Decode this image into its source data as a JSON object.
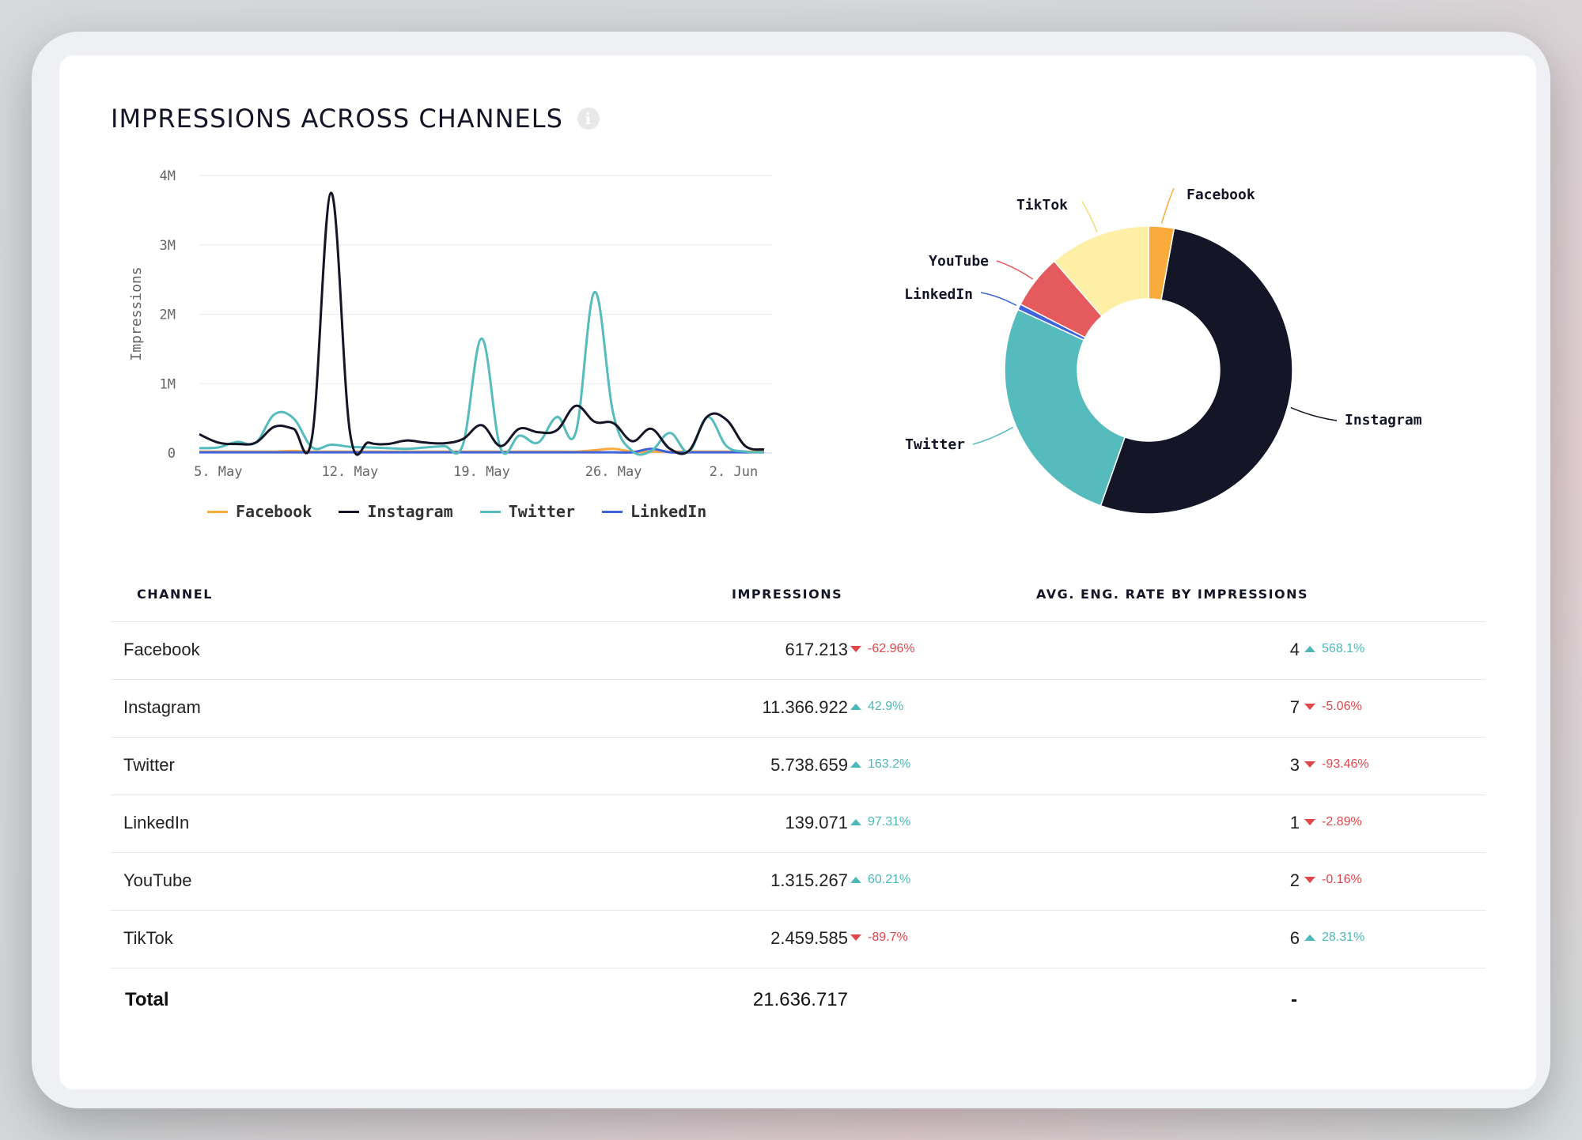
{
  "header": {
    "title": "IMPRESSIONS ACROSS CHANNELS",
    "info_icon": "info-icon"
  },
  "chart_data": [
    {
      "type": "line",
      "title": "",
      "xlabel": "",
      "ylabel": "Impressions",
      "ylim": [
        0,
        4000000
      ],
      "yticks": [
        "0",
        "1M",
        "2M",
        "3M",
        "4M"
      ],
      "xticks": [
        "5. May",
        "12. May",
        "19. May",
        "26. May",
        "2. Jun"
      ],
      "x_dates": [
        "4. May",
        "5. May",
        "6. May",
        "7. May",
        "8. May",
        "9. May",
        "10. May",
        "11. May",
        "12. May",
        "13. May",
        "14. May",
        "15. May",
        "16. May",
        "17. May",
        "18. May",
        "19. May",
        "20. May",
        "21. May",
        "22. May",
        "23. May",
        "24. May",
        "25. May",
        "26. May",
        "27. May",
        "28. May",
        "29. May",
        "30. May",
        "31. May",
        "1. Jun",
        "2. Jun",
        "3. Jun"
      ],
      "grid": true,
      "legend": "bottom",
      "series": [
        {
          "name": "Facebook",
          "color": "#f9ab3b",
          "values": [
            20000,
            20000,
            20000,
            20000,
            20000,
            30000,
            20000,
            20000,
            20000,
            20000,
            20000,
            20000,
            20000,
            20000,
            20000,
            20000,
            20000,
            20000,
            20000,
            20000,
            20000,
            40000,
            60000,
            20000,
            20000,
            20000,
            20000,
            20000,
            20000,
            20000,
            20000
          ]
        },
        {
          "name": "Instagram",
          "color": "#151528",
          "values": [
            270000,
            150000,
            130000,
            150000,
            380000,
            350000,
            250000,
            3750000,
            300000,
            150000,
            130000,
            180000,
            150000,
            140000,
            200000,
            400000,
            100000,
            350000,
            300000,
            330000,
            680000,
            450000,
            430000,
            170000,
            350000,
            60000,
            30000,
            530000,
            480000,
            100000,
            50000
          ]
        },
        {
          "name": "Twitter",
          "color": "#56bbbc",
          "values": [
            70000,
            80000,
            160000,
            150000,
            560000,
            500000,
            80000,
            120000,
            90000,
            80000,
            70000,
            60000,
            80000,
            100000,
            120000,
            1650000,
            70000,
            250000,
            150000,
            520000,
            300000,
            2320000,
            550000,
            30000,
            30000,
            290000,
            20000,
            520000,
            100000,
            20000,
            10000
          ]
        },
        {
          "name": "LinkedIn",
          "color": "#3f63db",
          "values": [
            10000,
            10000,
            10000,
            10000,
            10000,
            10000,
            10000,
            10000,
            10000,
            10000,
            10000,
            10000,
            10000,
            10000,
            10000,
            10000,
            10000,
            10000,
            10000,
            10000,
            10000,
            10000,
            10000,
            10000,
            60000,
            10000,
            10000,
            10000,
            10000,
            10000,
            10000
          ]
        }
      ]
    },
    {
      "type": "pie",
      "title": "",
      "donut": true,
      "slices": [
        {
          "name": "Facebook",
          "value": 617213,
          "color": "#f9ab3b"
        },
        {
          "name": "Instagram",
          "value": 11366922,
          "color": "#151528"
        },
        {
          "name": "Twitter",
          "value": 5738659,
          "color": "#56bbbc"
        },
        {
          "name": "LinkedIn",
          "value": 139071,
          "color": "#3f63db"
        },
        {
          "name": "YouTube",
          "value": 1315267,
          "color": "#e45a5d"
        },
        {
          "name": "TikTok",
          "value": 2459585,
          "color": "#fdf0a6"
        }
      ]
    }
  ],
  "table": {
    "headers": {
      "channel": "CHANNEL",
      "impressions": "IMPRESSIONS",
      "eng_rate": "AVG. ENG. RATE BY IMPRESSIONS"
    },
    "rows": [
      {
        "channel": "Facebook",
        "impressions": "617.213",
        "imp_change": "-62.96%",
        "imp_dir": "down",
        "eng": "4",
        "eng_change": "568.1%",
        "eng_dir": "up"
      },
      {
        "channel": "Instagram",
        "impressions": "11.366.922",
        "imp_change": "42.9%",
        "imp_dir": "up",
        "eng": "7",
        "eng_change": "-5.06%",
        "eng_dir": "down"
      },
      {
        "channel": "Twitter",
        "impressions": "5.738.659",
        "imp_change": "163.2%",
        "imp_dir": "up",
        "eng": "3",
        "eng_change": "-93.46%",
        "eng_dir": "down"
      },
      {
        "channel": "LinkedIn",
        "impressions": "139.071",
        "imp_change": "97.31%",
        "imp_dir": "up",
        "eng": "1",
        "eng_change": "-2.89%",
        "eng_dir": "down"
      },
      {
        "channel": "YouTube",
        "impressions": "1.315.267",
        "imp_change": "60.21%",
        "imp_dir": "up",
        "eng": "2",
        "eng_change": "-0.16%",
        "eng_dir": "down"
      },
      {
        "channel": "TikTok",
        "impressions": "2.459.585",
        "imp_change": "-89.7%",
        "imp_dir": "down",
        "eng": "6",
        "eng_change": "28.31%",
        "eng_dir": "up"
      }
    ],
    "total": {
      "label": "Total",
      "impressions": "21.636.717",
      "eng": "-"
    }
  }
}
